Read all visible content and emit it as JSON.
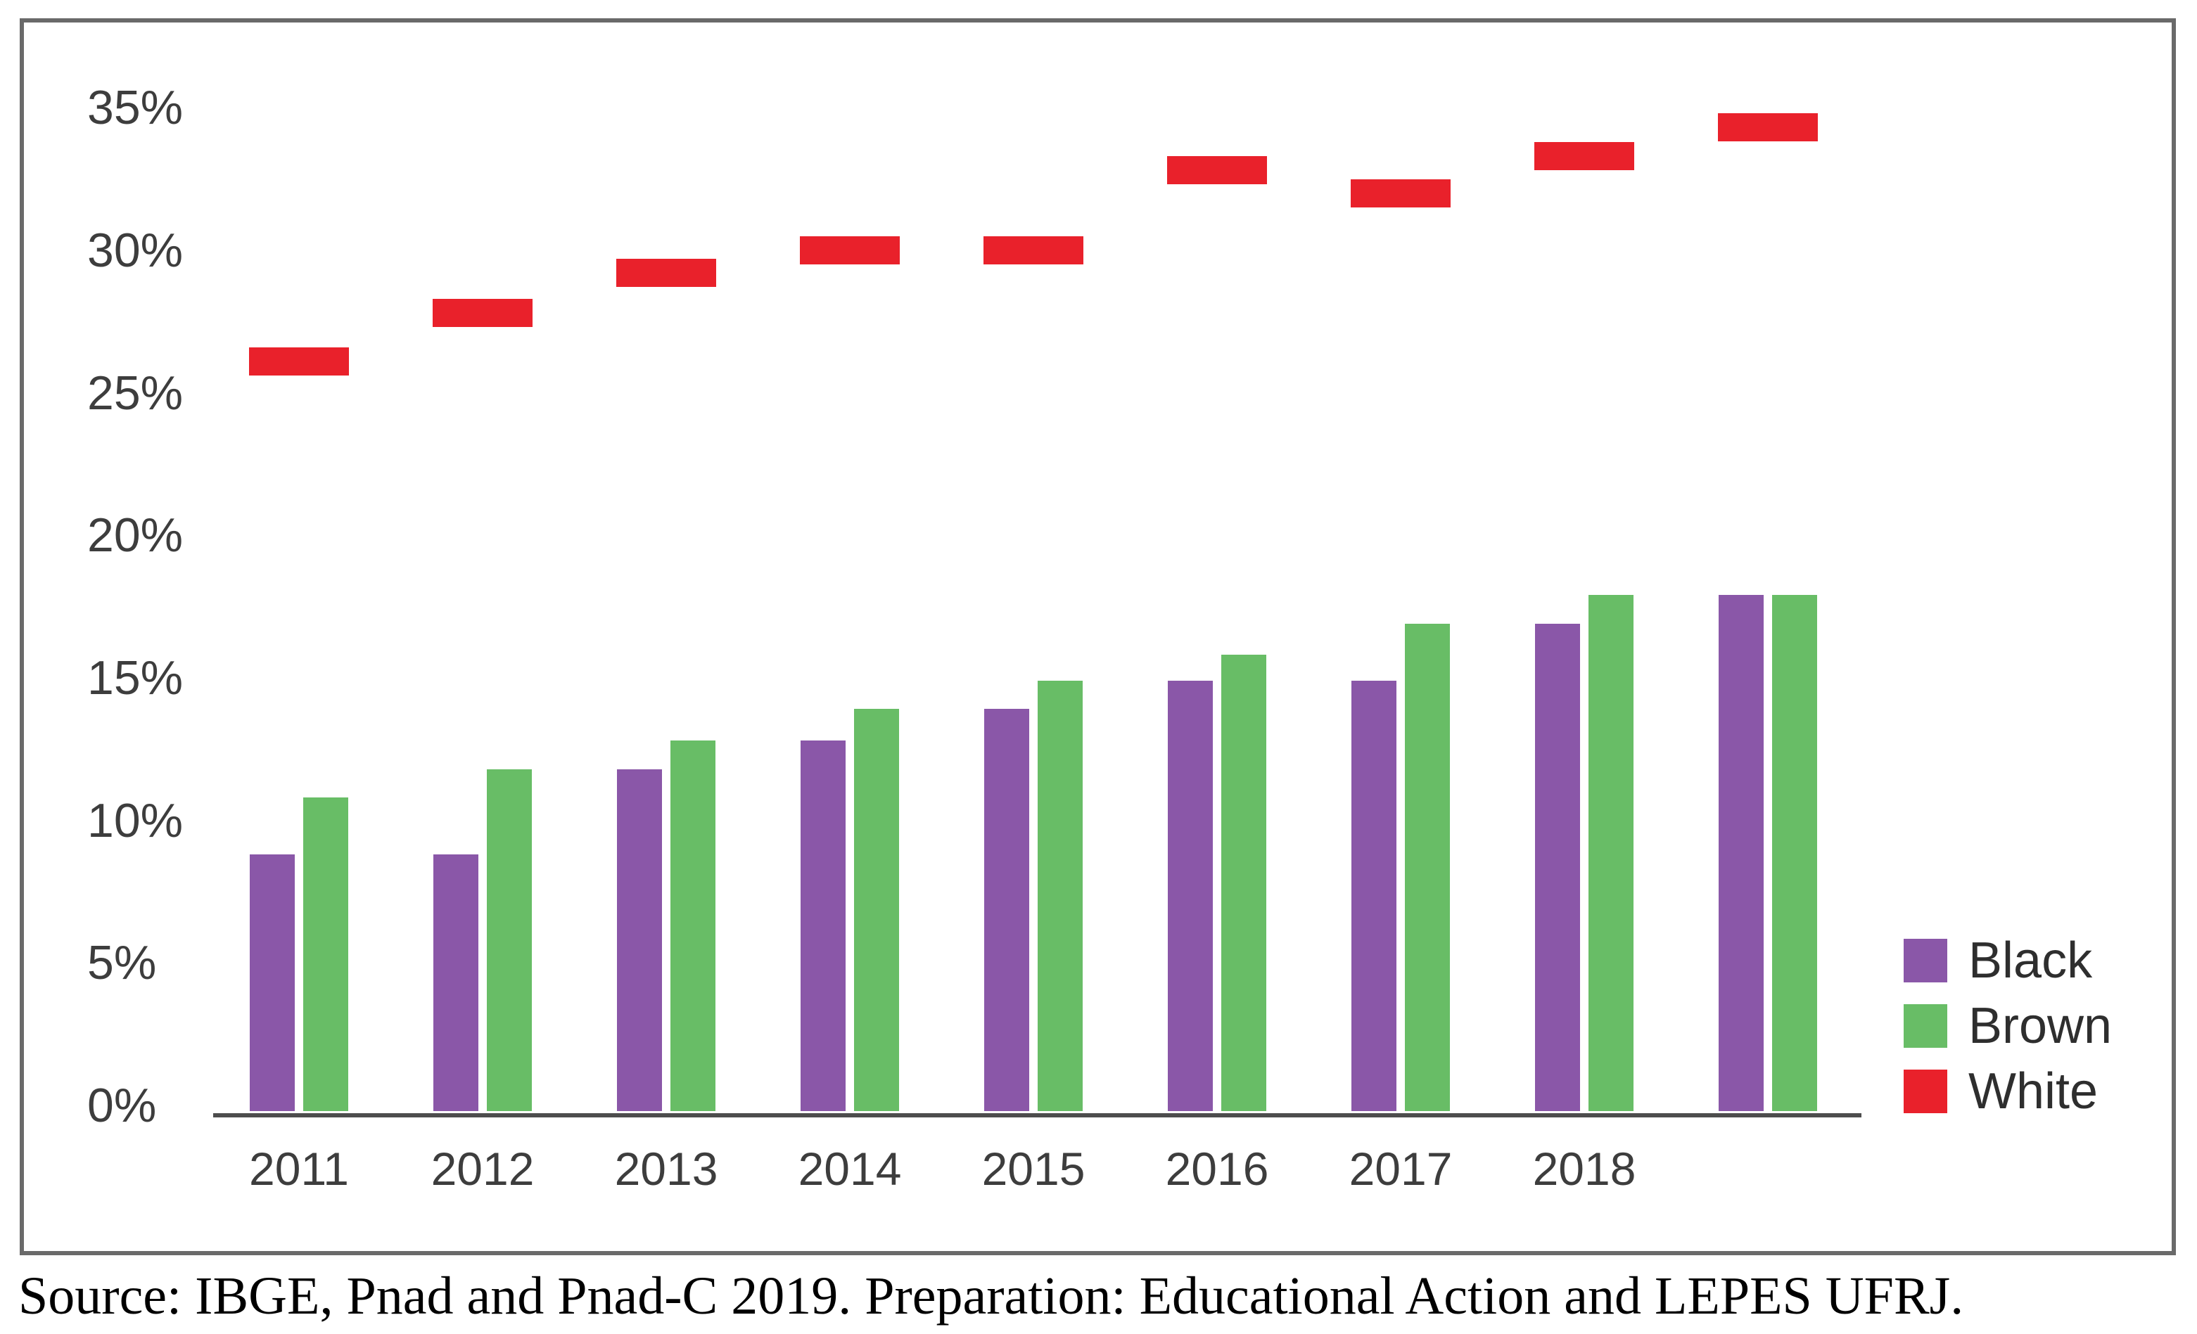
{
  "chart_data": {
    "type": "bar",
    "title": "",
    "xlabel": "",
    "ylabel": "",
    "categories": [
      "2011",
      "2012",
      "2013",
      "2014",
      "2015",
      "2016",
      "2017",
      "2018",
      ""
    ],
    "series": [
      {
        "name": "Black",
        "type": "bar",
        "color": "#8a57a8",
        "values": [
          8.8,
          8.8,
          11.8,
          12.8,
          13.9,
          14.9,
          14.9,
          16.9,
          17.9
        ]
      },
      {
        "name": "Brown",
        "type": "bar",
        "color": "#68bd66",
        "values": [
          10.8,
          11.8,
          12.8,
          13.9,
          14.9,
          15.8,
          16.9,
          17.9,
          17.9
        ]
      },
      {
        "name": "White",
        "type": "dash",
        "color": "#e9212b",
        "values": [
          26.1,
          27.8,
          29.2,
          30.0,
          30.0,
          32.8,
          32.0,
          33.3,
          34.3
        ]
      }
    ],
    "ylim": [
      0,
      35
    ],
    "yticks": [
      {
        "v": 0,
        "label": "0%"
      },
      {
        "v": 5,
        "label": "5%"
      },
      {
        "v": 10,
        "label": "10%"
      },
      {
        "v": 15,
        "label": "15%"
      },
      {
        "v": 20,
        "label": "20%"
      },
      {
        "v": 25,
        "label": "25%"
      },
      {
        "v": 30,
        "label": "30%"
      },
      {
        "v": 35,
        "label": "35%"
      }
    ],
    "grid": false,
    "legend_position": "bottom-right"
  },
  "source_note": "Source: IBGE, Pnad and Pnad-C 2019. Preparation: Educational Action and LEPES UFRJ.",
  "colors": {
    "axis": "#4d4d4d",
    "tick_text": "#3d3d3d",
    "border": "#6a6a6a",
    "background": "#ffffff"
  }
}
